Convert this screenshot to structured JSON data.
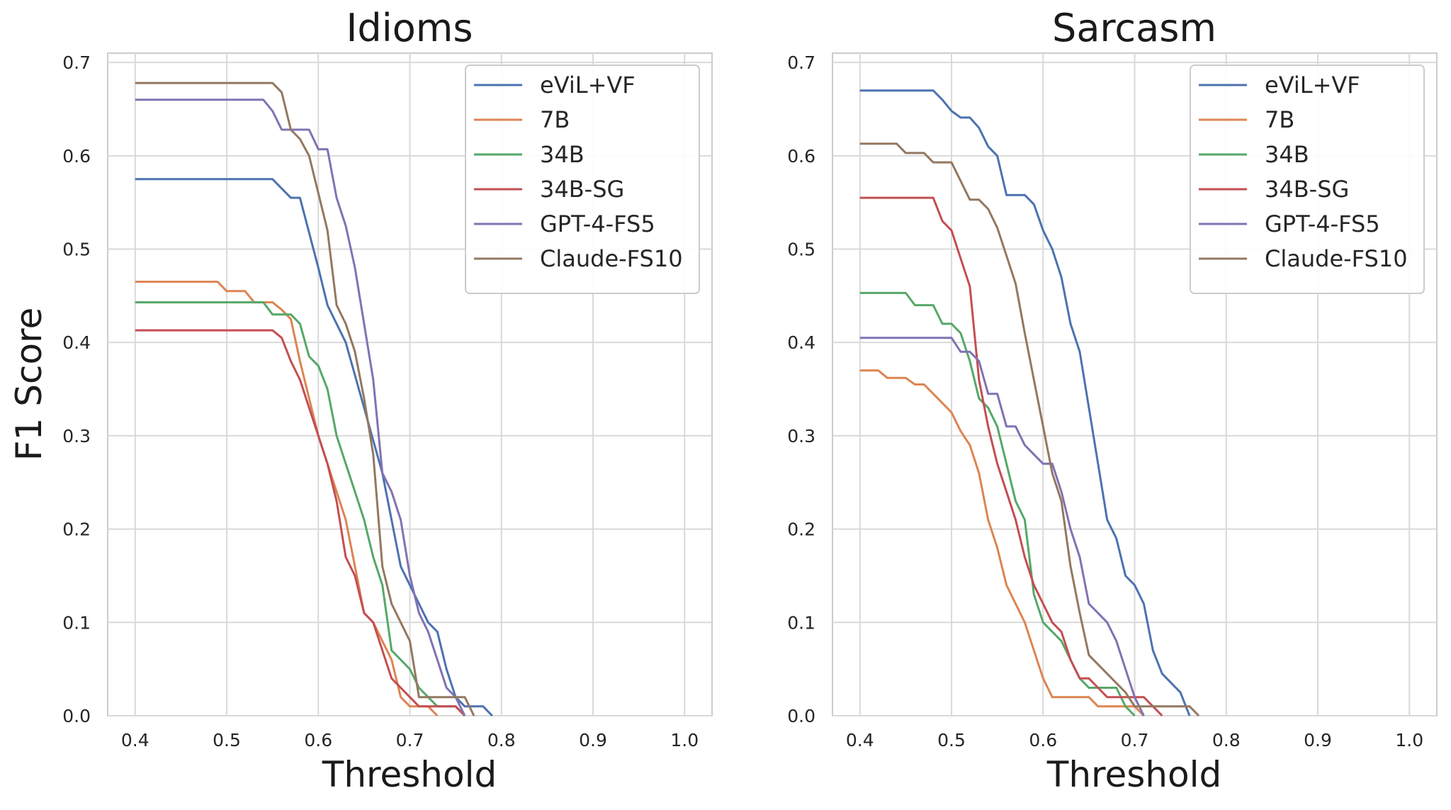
{
  "chart_data": [
    {
      "type": "line",
      "title": "Idioms",
      "xlabel": "Threshold",
      "ylabel": "F1 Score",
      "xlim": [
        0.37,
        1.03
      ],
      "ylim": [
        0.0,
        0.71
      ],
      "xticks": [
        "0.4",
        "0.5",
        "0.6",
        "0.7",
        "0.8",
        "0.9",
        "1.0"
      ],
      "yticks": [
        "0.0",
        "0.1",
        "0.2",
        "0.3",
        "0.4",
        "0.5",
        "0.6",
        "0.7"
      ],
      "grid": true,
      "legend": "top-right",
      "series": [
        {
          "name": "eViL+VF",
          "color": "#4c72b0",
          "x": [
            0.4,
            0.55,
            0.57,
            0.58,
            0.6,
            0.61,
            0.63,
            0.65,
            0.67,
            0.69,
            0.71,
            0.72,
            0.73,
            0.74,
            0.75,
            0.76,
            0.77,
            0.78,
            0.79
          ],
          "y": [
            0.575,
            0.575,
            0.555,
            0.555,
            0.48,
            0.44,
            0.4,
            0.33,
            0.26,
            0.16,
            0.12,
            0.1,
            0.09,
            0.05,
            0.02,
            0.01,
            0.01,
            0.01,
            0.0
          ]
        },
        {
          "name": "7B",
          "color": "#dd8452",
          "x": [
            0.4,
            0.49,
            0.5,
            0.52,
            0.53,
            0.55,
            0.56,
            0.57,
            0.58,
            0.6,
            0.61,
            0.62,
            0.63,
            0.64,
            0.65,
            0.66,
            0.67,
            0.68,
            0.69,
            0.7,
            0.71,
            0.72,
            0.73
          ],
          "y": [
            0.465,
            0.465,
            0.455,
            0.455,
            0.443,
            0.443,
            0.435,
            0.425,
            0.38,
            0.3,
            0.27,
            0.24,
            0.21,
            0.16,
            0.11,
            0.1,
            0.08,
            0.06,
            0.02,
            0.01,
            0.01,
            0.01,
            0.0
          ]
        },
        {
          "name": "34B",
          "color": "#55a868",
          "x": [
            0.4,
            0.54,
            0.55,
            0.57,
            0.58,
            0.59,
            0.6,
            0.61,
            0.62,
            0.63,
            0.64,
            0.65,
            0.66,
            0.67,
            0.68,
            0.69,
            0.7,
            0.71,
            0.72,
            0.73,
            0.74,
            0.75,
            0.76
          ],
          "y": [
            0.443,
            0.443,
            0.43,
            0.43,
            0.42,
            0.385,
            0.375,
            0.35,
            0.3,
            0.27,
            0.24,
            0.21,
            0.17,
            0.14,
            0.07,
            0.06,
            0.05,
            0.03,
            0.02,
            0.01,
            0.01,
            0.01,
            0.0
          ]
        },
        {
          "name": "34B-SG",
          "color": "#c44e52",
          "x": [
            0.4,
            0.55,
            0.56,
            0.57,
            0.58,
            0.59,
            0.6,
            0.61,
            0.62,
            0.63,
            0.64,
            0.65,
            0.66,
            0.67,
            0.68,
            0.69,
            0.7,
            0.71,
            0.72,
            0.73,
            0.74,
            0.75,
            0.76
          ],
          "y": [
            0.413,
            0.413,
            0.405,
            0.38,
            0.36,
            0.33,
            0.3,
            0.27,
            0.23,
            0.17,
            0.15,
            0.11,
            0.1,
            0.07,
            0.04,
            0.03,
            0.02,
            0.01,
            0.01,
            0.01,
            0.01,
            0.01,
            0.0
          ]
        },
        {
          "name": "GPT-4-FS5",
          "color": "#8172b3",
          "x": [
            0.4,
            0.54,
            0.55,
            0.56,
            0.57,
            0.59,
            0.6,
            0.61,
            0.62,
            0.63,
            0.64,
            0.65,
            0.66,
            0.67,
            0.68,
            0.69,
            0.7,
            0.71,
            0.72,
            0.73,
            0.74,
            0.75,
            0.76
          ],
          "y": [
            0.66,
            0.66,
            0.648,
            0.628,
            0.628,
            0.628,
            0.607,
            0.607,
            0.555,
            0.525,
            0.48,
            0.42,
            0.36,
            0.26,
            0.24,
            0.21,
            0.15,
            0.11,
            0.09,
            0.06,
            0.03,
            0.02,
            0.0
          ]
        },
        {
          "name": "Claude-FS10",
          "color": "#937860",
          "x": [
            0.4,
            0.55,
            0.56,
            0.57,
            0.58,
            0.59,
            0.6,
            0.61,
            0.62,
            0.63,
            0.64,
            0.65,
            0.66,
            0.67,
            0.68,
            0.69,
            0.7,
            0.71,
            0.72,
            0.73,
            0.74,
            0.75,
            0.76,
            0.77
          ],
          "y": [
            0.678,
            0.678,
            0.668,
            0.628,
            0.618,
            0.6,
            0.56,
            0.52,
            0.44,
            0.42,
            0.39,
            0.34,
            0.28,
            0.16,
            0.12,
            0.1,
            0.08,
            0.02,
            0.02,
            0.02,
            0.02,
            0.02,
            0.02,
            0.0
          ]
        }
      ]
    },
    {
      "type": "line",
      "title": "Sarcasm",
      "xlabel": "Threshold",
      "ylabel": "",
      "xlim": [
        0.37,
        1.03
      ],
      "ylim": [
        0.0,
        0.71
      ],
      "xticks": [
        "0.4",
        "0.5",
        "0.6",
        "0.7",
        "0.8",
        "0.9",
        "1.0"
      ],
      "yticks": [
        "0.0",
        "0.1",
        "0.2",
        "0.3",
        "0.4",
        "0.5",
        "0.6",
        "0.7"
      ],
      "grid": true,
      "legend": "top-right",
      "series": [
        {
          "name": "eViL+VF",
          "color": "#4c72b0",
          "x": [
            0.4,
            0.48,
            0.49,
            0.5,
            0.51,
            0.52,
            0.53,
            0.54,
            0.55,
            0.56,
            0.57,
            0.58,
            0.59,
            0.6,
            0.61,
            0.62,
            0.63,
            0.64,
            0.65,
            0.66,
            0.67,
            0.68,
            0.69,
            0.7,
            0.71,
            0.72,
            0.73,
            0.74,
            0.75,
            0.76
          ],
          "y": [
            0.67,
            0.67,
            0.66,
            0.648,
            0.641,
            0.641,
            0.63,
            0.61,
            0.6,
            0.558,
            0.558,
            0.558,
            0.548,
            0.52,
            0.5,
            0.47,
            0.42,
            0.39,
            0.33,
            0.27,
            0.21,
            0.19,
            0.15,
            0.14,
            0.12,
            0.07,
            0.045,
            0.035,
            0.025,
            0.0
          ]
        },
        {
          "name": "7B",
          "color": "#dd8452",
          "x": [
            0.4,
            0.42,
            0.43,
            0.45,
            0.46,
            0.47,
            0.48,
            0.49,
            0.5,
            0.51,
            0.52,
            0.53,
            0.54,
            0.55,
            0.56,
            0.57,
            0.58,
            0.59,
            0.6,
            0.61,
            0.62,
            0.65,
            0.66,
            0.67,
            0.7,
            0.71
          ],
          "y": [
            0.37,
            0.37,
            0.362,
            0.362,
            0.355,
            0.355,
            0.345,
            0.335,
            0.325,
            0.305,
            0.29,
            0.26,
            0.21,
            0.18,
            0.14,
            0.12,
            0.1,
            0.07,
            0.04,
            0.02,
            0.02,
            0.02,
            0.01,
            0.01,
            0.01,
            0.0
          ]
        },
        {
          "name": "34B",
          "color": "#55a868",
          "x": [
            0.4,
            0.45,
            0.46,
            0.47,
            0.48,
            0.49,
            0.5,
            0.51,
            0.52,
            0.53,
            0.54,
            0.55,
            0.56,
            0.57,
            0.58,
            0.59,
            0.6,
            0.61,
            0.62,
            0.63,
            0.64,
            0.65,
            0.66,
            0.67,
            0.68,
            0.69,
            0.7
          ],
          "y": [
            0.453,
            0.453,
            0.44,
            0.44,
            0.44,
            0.42,
            0.42,
            0.41,
            0.38,
            0.34,
            0.33,
            0.31,
            0.27,
            0.23,
            0.21,
            0.13,
            0.1,
            0.09,
            0.08,
            0.06,
            0.04,
            0.03,
            0.03,
            0.03,
            0.03,
            0.01,
            0.0
          ]
        },
        {
          "name": "34B-SG",
          "color": "#c44e52",
          "x": [
            0.4,
            0.48,
            0.49,
            0.5,
            0.51,
            0.52,
            0.53,
            0.54,
            0.55,
            0.56,
            0.57,
            0.58,
            0.59,
            0.6,
            0.61,
            0.62,
            0.63,
            0.64,
            0.65,
            0.66,
            0.67,
            0.68,
            0.69,
            0.7,
            0.71,
            0.72,
            0.73
          ],
          "y": [
            0.555,
            0.555,
            0.53,
            0.52,
            0.49,
            0.46,
            0.36,
            0.31,
            0.27,
            0.24,
            0.21,
            0.17,
            0.14,
            0.12,
            0.1,
            0.09,
            0.06,
            0.04,
            0.04,
            0.03,
            0.02,
            0.02,
            0.02,
            0.02,
            0.02,
            0.01,
            0.0
          ]
        },
        {
          "name": "GPT-4-FS5",
          "color": "#8172b3",
          "x": [
            0.4,
            0.48,
            0.49,
            0.5,
            0.51,
            0.52,
            0.53,
            0.54,
            0.55,
            0.56,
            0.57,
            0.58,
            0.59,
            0.6,
            0.61,
            0.62,
            0.63,
            0.64,
            0.65,
            0.66,
            0.67,
            0.68,
            0.69,
            0.7,
            0.71
          ],
          "y": [
            0.405,
            0.405,
            0.405,
            0.405,
            0.39,
            0.39,
            0.38,
            0.345,
            0.345,
            0.31,
            0.31,
            0.29,
            0.28,
            0.27,
            0.27,
            0.24,
            0.2,
            0.17,
            0.12,
            0.11,
            0.1,
            0.08,
            0.05,
            0.02,
            0.0
          ]
        },
        {
          "name": "Claude-FS10",
          "color": "#937860",
          "x": [
            0.4,
            0.44,
            0.45,
            0.46,
            0.47,
            0.48,
            0.49,
            0.5,
            0.51,
            0.52,
            0.53,
            0.54,
            0.55,
            0.56,
            0.57,
            0.58,
            0.59,
            0.6,
            0.61,
            0.62,
            0.63,
            0.64,
            0.65,
            0.66,
            0.67,
            0.68,
            0.69,
            0.7,
            0.71,
            0.72,
            0.73,
            0.74,
            0.75,
            0.76,
            0.77
          ],
          "y": [
            0.613,
            0.613,
            0.603,
            0.603,
            0.603,
            0.593,
            0.593,
            0.593,
            0.573,
            0.553,
            0.553,
            0.543,
            0.523,
            0.493,
            0.463,
            0.41,
            0.36,
            0.31,
            0.26,
            0.23,
            0.16,
            0.11,
            0.065,
            0.055,
            0.045,
            0.035,
            0.025,
            0.01,
            0.01,
            0.01,
            0.01,
            0.01,
            0.01,
            0.01,
            0.0
          ]
        }
      ]
    }
  ]
}
